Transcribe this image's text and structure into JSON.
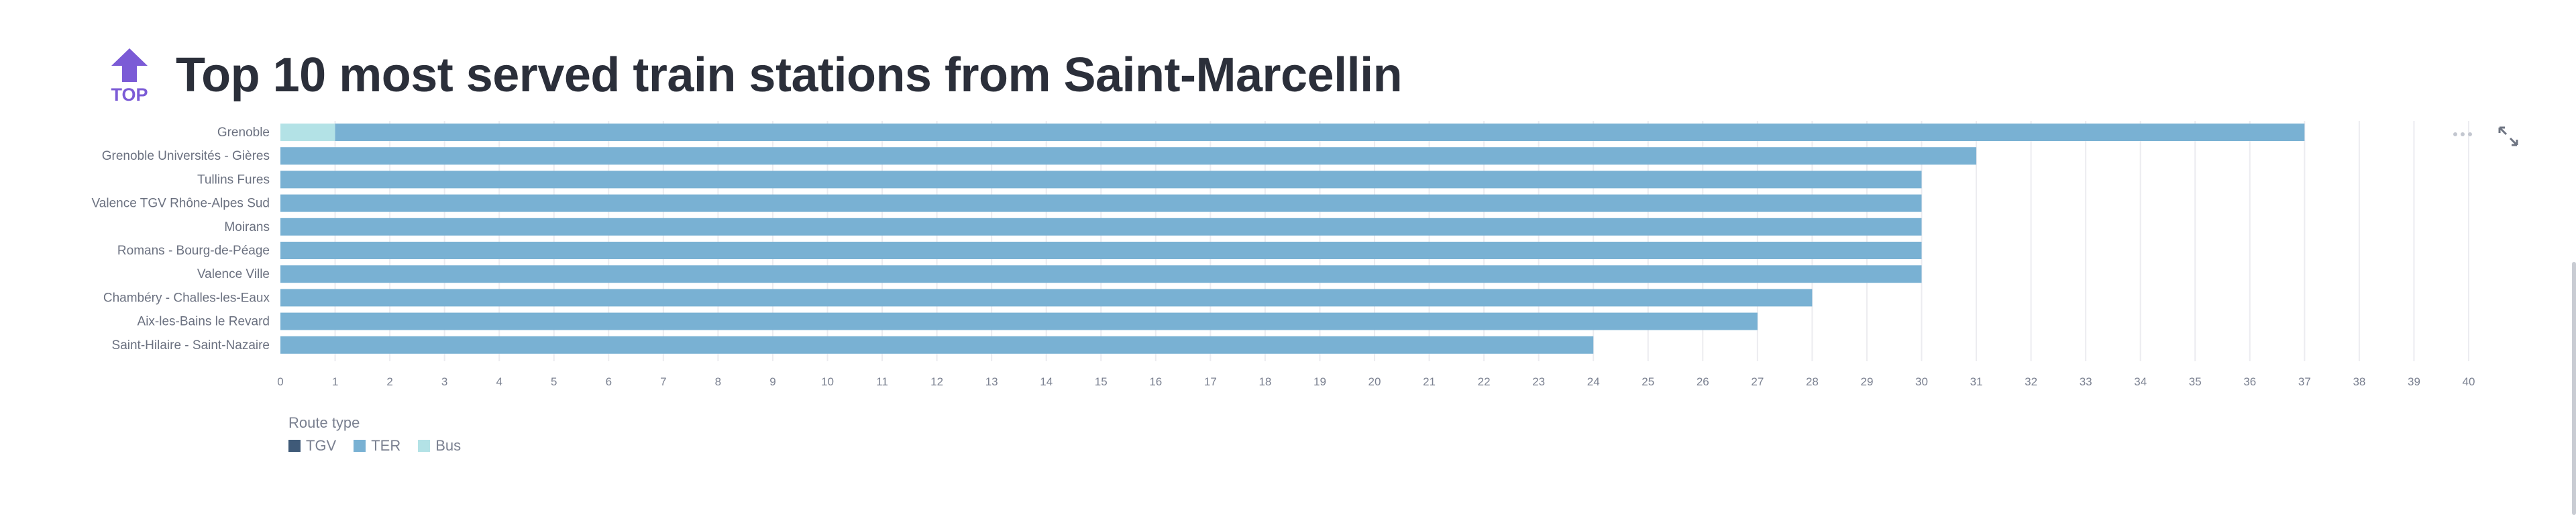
{
  "header": {
    "logo_text": "TOP",
    "title": "Top 10 most served train stations from Saint-Marcellin"
  },
  "colors": {
    "TGV": "#3f5a78",
    "TER": "#79b1d3",
    "Bus": "#b3e2e6",
    "grid": "#ececf0",
    "logo": "#7b5bd6"
  },
  "icons": {
    "more": "more-horizontal-icon",
    "expand": "expand-icon"
  },
  "chart_data": {
    "type": "bar",
    "orientation": "horizontal",
    "stacked": true,
    "title": "Top 10 most served train stations from Saint-Marcellin",
    "categories": [
      "Grenoble",
      "Grenoble Universités - Gières",
      "Tullins Fures",
      "Valence TGV Rhône-Alpes Sud",
      "Moirans",
      "Romans - Bourg-de-Péage",
      "Valence Ville",
      "Chambéry - Challes-les-Eaux",
      "Aix-les-Bains le Revard",
      "Saint-Hilaire - Saint-Nazaire"
    ],
    "series": [
      {
        "name": "TGV",
        "values": [
          0,
          0,
          0,
          0,
          0,
          0,
          0,
          0,
          0,
          0
        ]
      },
      {
        "name": "TER",
        "values": [
          36,
          31,
          30,
          30,
          30,
          30,
          30,
          28,
          27,
          24
        ]
      },
      {
        "name": "Bus",
        "values": [
          1,
          0,
          0,
          0,
          0,
          0,
          0,
          0,
          0,
          0
        ]
      }
    ],
    "stack_order": [
      "Bus",
      "TER",
      "TGV"
    ],
    "xlim": [
      0,
      40
    ],
    "x_ticks": [
      0,
      1,
      2,
      3,
      4,
      5,
      6,
      7,
      8,
      9,
      10,
      11,
      12,
      13,
      14,
      15,
      16,
      17,
      18,
      19,
      20,
      21,
      22,
      23,
      24,
      25,
      26,
      27,
      28,
      29,
      30,
      31,
      32,
      33,
      34,
      35,
      36,
      37,
      38,
      39,
      40
    ],
    "xlabel": "",
    "ylabel": "",
    "grid": true,
    "legend": {
      "title": "Route type",
      "placement": "bottom-left",
      "items": [
        "TGV",
        "TER",
        "Bus"
      ]
    }
  }
}
